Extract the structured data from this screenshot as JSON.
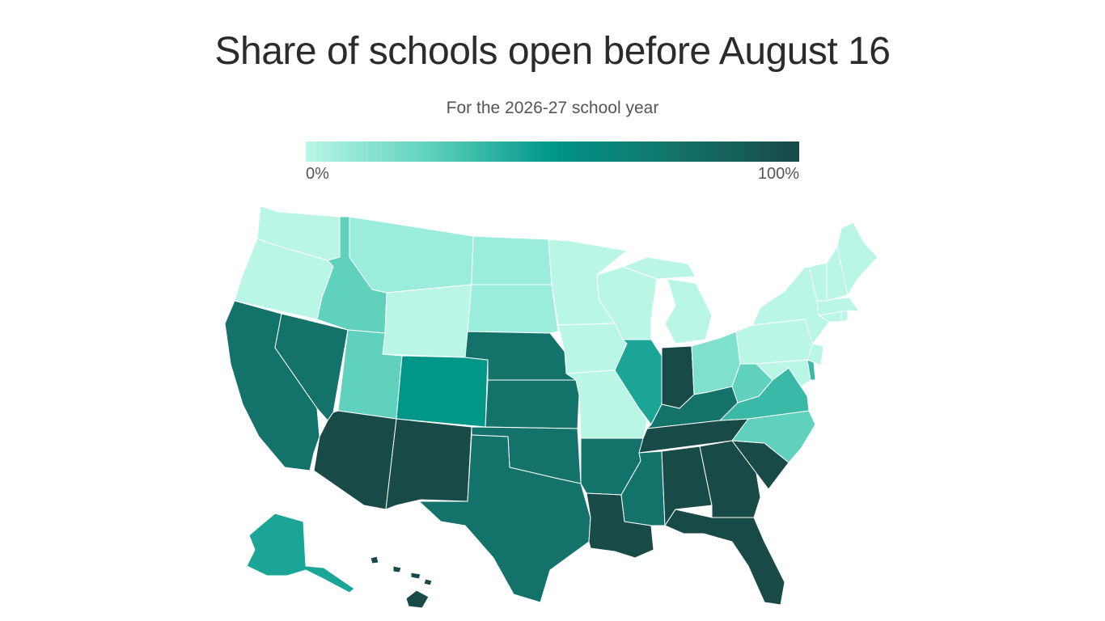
{
  "title": "Share of schools open before August 16",
  "subtitle": "For the 2026-27 school year",
  "legend": {
    "min_label": "0%",
    "max_label": "100%",
    "colors": [
      "#b9f6e6",
      "#5fd1bd",
      "#009688",
      "#13736a",
      "#184a47"
    ]
  },
  "chart_data": {
    "type": "choropleth",
    "value_scale": [
      0,
      100
    ],
    "levels": {
      "very_low": "#b9f6e6",
      "low": "#9aecdb",
      "light_mid": "#7ee0cd",
      "lower_mid": "#5fd1bd",
      "mid": "#3bb9a8",
      "mid_high": "#1aa596",
      "teal": "#009688",
      "high": "#13736a",
      "very_high": "#184a47"
    },
    "regions": [
      {
        "state": "Washington",
        "level": "very_low"
      },
      {
        "state": "Oregon",
        "level": "very_low"
      },
      {
        "state": "California",
        "level": "high"
      },
      {
        "state": "Nevada",
        "level": "high"
      },
      {
        "state": "Idaho",
        "level": "lower_mid"
      },
      {
        "state": "Montana",
        "level": "low"
      },
      {
        "state": "Wyoming",
        "level": "very_low"
      },
      {
        "state": "Utah",
        "level": "lower_mid"
      },
      {
        "state": "Arizona",
        "level": "very_high"
      },
      {
        "state": "Colorado",
        "level": "teal"
      },
      {
        "state": "New Mexico",
        "level": "very_high"
      },
      {
        "state": "North Dakota",
        "level": "low"
      },
      {
        "state": "South Dakota",
        "level": "low"
      },
      {
        "state": "Nebraska",
        "level": "high"
      },
      {
        "state": "Kansas",
        "level": "high"
      },
      {
        "state": "Oklahoma",
        "level": "high"
      },
      {
        "state": "Texas",
        "level": "high"
      },
      {
        "state": "Minnesota",
        "level": "very_low"
      },
      {
        "state": "Iowa",
        "level": "very_low"
      },
      {
        "state": "Missouri",
        "level": "very_low"
      },
      {
        "state": "Arkansas",
        "level": "high"
      },
      {
        "state": "Louisiana",
        "level": "very_high"
      },
      {
        "state": "Wisconsin",
        "level": "very_low"
      },
      {
        "state": "Illinois",
        "level": "mid_high"
      },
      {
        "state": "Michigan",
        "level": "very_low"
      },
      {
        "state": "Indiana",
        "level": "very_high"
      },
      {
        "state": "Ohio",
        "level": "light_mid"
      },
      {
        "state": "Kentucky",
        "level": "high"
      },
      {
        "state": "Tennessee",
        "level": "very_high"
      },
      {
        "state": "Mississippi",
        "level": "high"
      },
      {
        "state": "Alabama",
        "level": "very_high"
      },
      {
        "state": "Georgia",
        "level": "very_high"
      },
      {
        "state": "Florida",
        "level": "very_high"
      },
      {
        "state": "South Carolina",
        "level": "very_high"
      },
      {
        "state": "North Carolina",
        "level": "lower_mid"
      },
      {
        "state": "Virginia",
        "level": "mid"
      },
      {
        "state": "West Virginia",
        "level": "lower_mid"
      },
      {
        "state": "Maryland",
        "level": "very_low"
      },
      {
        "state": "Delaware",
        "level": "mid"
      },
      {
        "state": "Pennsylvania",
        "level": "very_low"
      },
      {
        "state": "New Jersey",
        "level": "very_low"
      },
      {
        "state": "New York",
        "level": "very_low"
      },
      {
        "state": "Connecticut",
        "level": "very_low"
      },
      {
        "state": "Rhode Island",
        "level": "very_low"
      },
      {
        "state": "Massachusetts",
        "level": "very_low"
      },
      {
        "state": "Vermont",
        "level": "very_low"
      },
      {
        "state": "New Hampshire",
        "level": "very_low"
      },
      {
        "state": "Maine",
        "level": "very_low"
      },
      {
        "state": "Alaska",
        "level": "mid_high"
      },
      {
        "state": "Hawaii",
        "level": "very_high"
      }
    ]
  }
}
